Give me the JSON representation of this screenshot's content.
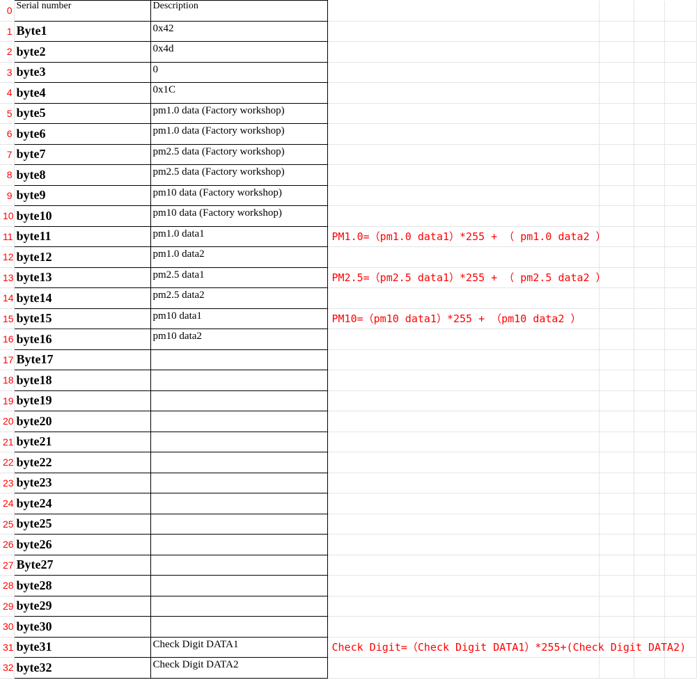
{
  "header": {
    "index": "0",
    "serial": "Serial number",
    "desc": "Description"
  },
  "rows": [
    {
      "idx": "1",
      "serial": "Byte1",
      "desc": "0x42",
      "formula": ""
    },
    {
      "idx": "2",
      "serial": "byte2",
      "desc": "0x4d",
      "formula": ""
    },
    {
      "idx": "3",
      "serial": "byte3",
      "desc": "0",
      "formula": ""
    },
    {
      "idx": "4",
      "serial": "byte4",
      "desc": "0x1C",
      "formula": ""
    },
    {
      "idx": "5",
      "serial": "byte5",
      "desc": "pm1.0 data   (Factory workshop)",
      "formula": ""
    },
    {
      "idx": "6",
      "serial": "byte6",
      "desc": "pm1.0 data   (Factory workshop)",
      "formula": ""
    },
    {
      "idx": "7",
      "serial": "byte7",
      "desc": "pm2.5 data   (Factory workshop)",
      "formula": ""
    },
    {
      "idx": "8",
      "serial": "byte8",
      "desc": "pm2.5 data   (Factory workshop)",
      "formula": ""
    },
    {
      "idx": "9",
      "serial": "byte9",
      "desc": "pm10  data   (Factory workshop)",
      "formula": ""
    },
    {
      "idx": "10",
      "serial": "byte10",
      "desc": "pm10  data   (Factory workshop)",
      "formula": ""
    },
    {
      "idx": "11",
      "serial": "byte11",
      "desc": "pm1.0 data1",
      "formula": "PM1.0=（pm1.0 data1）*255 + （ pm1.0 data2 ）"
    },
    {
      "idx": "12",
      "serial": "byte12",
      "desc": "pm1.0 data2",
      "formula": ""
    },
    {
      "idx": "13",
      "serial": "byte13",
      "desc": "pm2.5 data1",
      "formula": "PM2.5=（pm2.5 data1）*255 + （ pm2.5 data2 ）"
    },
    {
      "idx": "14",
      "serial": "byte14",
      "desc": "pm2.5 data2",
      "formula": ""
    },
    {
      "idx": "15",
      "serial": "byte15",
      "desc": "pm10  data1",
      "formula": "PM10=（pm10 data1）*255 +  （pm10 data2 ）"
    },
    {
      "idx": "16",
      "serial": "byte16",
      "desc": "pm10  data2",
      "formula": ""
    },
    {
      "idx": "17",
      "serial": "Byte17",
      "desc": "",
      "formula": ""
    },
    {
      "idx": "18",
      "serial": "byte18",
      "desc": "",
      "formula": ""
    },
    {
      "idx": "19",
      "serial": "byte19",
      "desc": "",
      "formula": ""
    },
    {
      "idx": "20",
      "serial": "byte20",
      "desc": "",
      "formula": ""
    },
    {
      "idx": "21",
      "serial": "byte21",
      "desc": "",
      "formula": ""
    },
    {
      "idx": "22",
      "serial": "byte22",
      "desc": "",
      "formula": ""
    },
    {
      "idx": "23",
      "serial": "byte23",
      "desc": "",
      "formula": ""
    },
    {
      "idx": "24",
      "serial": "byte24",
      "desc": "",
      "formula": ""
    },
    {
      "idx": "25",
      "serial": "byte25",
      "desc": "",
      "formula": ""
    },
    {
      "idx": "26",
      "serial": "byte26",
      "desc": "",
      "formula": ""
    },
    {
      "idx": "27",
      "serial": "Byte27",
      "desc": "",
      "formula": ""
    },
    {
      "idx": "28",
      "serial": "byte28",
      "desc": "",
      "formula": ""
    },
    {
      "idx": "29",
      "serial": "byte29",
      "desc": "",
      "formula": ""
    },
    {
      "idx": "30",
      "serial": "byte30",
      "desc": "",
      "formula": ""
    },
    {
      "idx": "31",
      "serial": "byte31",
      "desc": "Check Digit DATA1",
      "formula": "Check Digit=（Check Digit DATA1）*255+(Check Digit DATA2)"
    },
    {
      "idx": "32",
      "serial": "byte32",
      "desc": "Check Digit DATA2",
      "formula": ""
    }
  ],
  "colors": {
    "index_text": "#ff0000",
    "formula_text": "#ff0000",
    "grid_light": "#e5e5e5",
    "grid_dark": "#000000",
    "background": "#ffffff"
  }
}
